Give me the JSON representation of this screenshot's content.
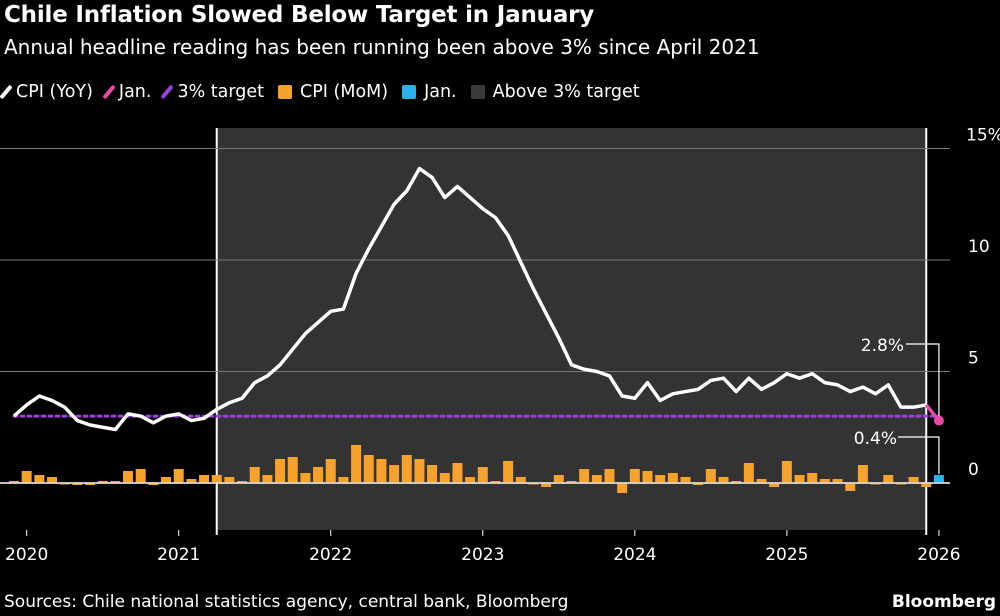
{
  "title": "Chile Inflation Slowed Below Target in January",
  "subtitle": "Annual headline reading has been running been above 3% since April 2021",
  "source": "Sources: Chile national statistics agency, central bank, Bloomberg",
  "brand": "Bloomberg",
  "legend": [
    {
      "label": "CPI (YoY)",
      "color": "#ffffff",
      "shape": "line"
    },
    {
      "label": "Jan.",
      "color": "#e84aa6",
      "shape": "line"
    },
    {
      "label": "3% target",
      "color": "#9b3fd9",
      "shape": "line"
    },
    {
      "label": "CPI (MoM)",
      "color": "#f7a22c",
      "shape": "box"
    },
    {
      "label": "Jan.",
      "color": "#2ab3ea",
      "shape": "box"
    },
    {
      "label": "Above 3% target",
      "color": "#333333",
      "shape": "box"
    }
  ],
  "chart_data": {
    "type": "line+bar",
    "title": "Chile Inflation Slowed Below Target in January",
    "x_start": "2019-12",
    "x_end": "2026-01",
    "x_ticks": [
      "2020",
      "2021",
      "2022",
      "2023",
      "2024",
      "2025",
      "2026"
    ],
    "y_ticks": [
      "15%",
      "10",
      "5",
      "0"
    ],
    "y_tick_values": [
      15,
      10,
      5,
      0
    ],
    "ylim": [
      -2,
      15.5
    ],
    "target": 3,
    "shaded_range": [
      "2021-04",
      "2025-12"
    ],
    "series": [
      {
        "name": "CPI (YoY)",
        "type": "line",
        "color": "#ffffff",
        "values": [
          3.0,
          3.5,
          3.9,
          3.7,
          3.4,
          2.8,
          2.6,
          2.5,
          2.4,
          3.1,
          3.0,
          2.7,
          3.0,
          3.1,
          2.8,
          2.9,
          3.3,
          3.6,
          3.8,
          4.5,
          4.8,
          5.3,
          6.0,
          6.7,
          7.2,
          7.7,
          7.8,
          9.4,
          10.5,
          11.5,
          12.5,
          13.1,
          14.1,
          13.7,
          12.8,
          13.3,
          12.8,
          12.3,
          11.9,
          11.1,
          9.9,
          8.7,
          7.6,
          6.5,
          5.3,
          5.1,
          5.0,
          4.8,
          3.9,
          3.8,
          4.5,
          3.7,
          4.0,
          4.1,
          4.2,
          4.6,
          4.7,
          4.1,
          4.7,
          4.2,
          4.5,
          4.9,
          4.7,
          4.9,
          4.5,
          4.4,
          4.1,
          4.3,
          4.0,
          4.4,
          3.4,
          3.4,
          3.5,
          2.8
        ]
      },
      {
        "name": "CPI (MoM)",
        "type": "bar",
        "color": "#f7a22c",
        "values": [
          0.1,
          0.6,
          0.4,
          0.3,
          0.0,
          -0.1,
          -0.1,
          0.1,
          0.1,
          0.6,
          0.7,
          -0.1,
          0.3,
          0.7,
          0.2,
          0.4,
          0.4,
          0.3,
          0.1,
          0.8,
          0.4,
          1.2,
          1.3,
          0.5,
          0.8,
          1.2,
          0.3,
          1.9,
          1.4,
          1.2,
          0.9,
          1.4,
          1.2,
          0.9,
          0.5,
          1.0,
          0.3,
          0.8,
          0.1,
          1.1,
          0.3,
          0.0,
          -0.2,
          0.4,
          0.1,
          0.7,
          0.4,
          0.7,
          -0.5,
          0.7,
          0.6,
          0.4,
          0.5,
          0.3,
          -0.1,
          0.7,
          0.3,
          0.1,
          1.0,
          0.2,
          -0.2,
          1.1,
          0.4,
          0.5,
          0.2,
          0.2,
          -0.4,
          0.9,
          0.0,
          0.4,
          0.0,
          0.3,
          -0.2,
          0.4
        ]
      }
    ],
    "annotations": [
      {
        "label": "2.8%",
        "series": "CPI (YoY)",
        "date": "2026-01",
        "value": 2.8,
        "color": "#e84aa6"
      },
      {
        "label": "0.4%",
        "series": "CPI (MoM)",
        "date": "2026-01",
        "value": 0.4,
        "color": "#2ab3ea"
      }
    ]
  }
}
